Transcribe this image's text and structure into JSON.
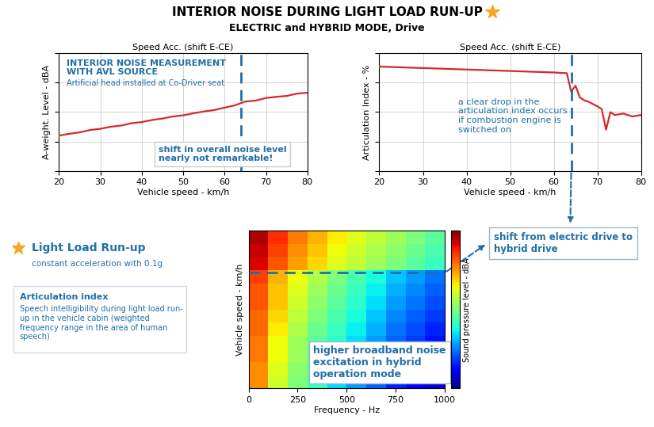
{
  "title": "INTERIOR NOISE DURING LIGHT LOAD RUN-UP",
  "subtitle": "ELECTRIC and HYBRID MODE, Drive",
  "run_up_note": {
    "title": "Light Load Run-up",
    "text": "constant acceleration with 0.1g"
  },
  "definition": {
    "title": "Articulation index",
    "lines": [
      "Speech intelligibility during light load run-",
      "up in the vehicle cabin (weighted",
      "frequency range in the area of human",
      "speech)"
    ]
  },
  "shift_note": {
    "lines": [
      "shift from electric drive to",
      "hybrid drive"
    ]
  },
  "shift_speed": 64,
  "chart_data": [
    {
      "type": "line",
      "title": "Speed Acc. (shift E-CE)",
      "x_label": "Vehicle speed - km/h",
      "y_label": "A-weight. Level - dBA",
      "x": [
        20,
        22.5,
        25,
        27.5,
        30,
        32.5,
        35,
        37.5,
        40,
        42.5,
        45,
        47.5,
        50,
        52.5,
        55,
        57.5,
        60,
        62.5,
        65,
        67.5,
        70,
        72.5,
        75,
        77.5,
        80
      ],
      "values": [
        52.0,
        52.6,
        53.1,
        53.9,
        54.3,
        55.0,
        55.4,
        56.2,
        56.6,
        57.3,
        57.8,
        58.5,
        58.9,
        59.6,
        60.2,
        60.7,
        61.5,
        62.3,
        63.6,
        63.9,
        64.8,
        65.2,
        65.5,
        66.3,
        66.6
      ],
      "color": "#d42a2a",
      "xlim": [
        20,
        80
      ],
      "xticks": [
        20,
        30,
        40,
        50,
        60,
        70,
        80
      ],
      "ylim": [
        40,
        80
      ],
      "yticks": [
        40,
        50,
        60,
        70,
        80
      ],
      "grid": true,
      "tick_labels": "x",
      "heading_lines": [
        "INTERIOR NOISE MEASUREMENT",
        "WITH AVL SOURCE"
      ],
      "heading_text": "Artificial head installed at Co-Driver seat",
      "note_lines": [
        "shift in overall noise level",
        "nearly not remarkable!"
      ]
    },
    {
      "type": "line",
      "title": "Speed Acc. (shift E-CE)",
      "x_label": "Vehicle speed - km/h",
      "y_label": "Articulation Index - %",
      "x": [
        20,
        25,
        30,
        35,
        40,
        45,
        50,
        55,
        60,
        63,
        64,
        65,
        66,
        67,
        68,
        70,
        71,
        72,
        73,
        74,
        76,
        78,
        80
      ],
      "values": [
        91,
        90.5,
        90,
        89.5,
        89,
        88.5,
        88,
        87.5,
        87,
        86.5,
        74,
        78,
        70,
        68,
        67,
        64,
        62,
        48,
        60,
        58,
        59,
        57,
        58
      ],
      "color": "#d42a2a",
      "xlim": [
        20,
        80
      ],
      "xticks": [
        20,
        30,
        40,
        50,
        60,
        70,
        80
      ],
      "ylim": [
        20,
        100
      ],
      "yticks": [
        20,
        40,
        60,
        80,
        100
      ],
      "grid": true,
      "tick_labels": "x",
      "note_lines": [
        "a clear drop in the",
        "articulation index occurs",
        "if combustion engine is",
        "switched on"
      ]
    },
    {
      "type": "heatmap",
      "x_label": "Frequency - Hz",
      "y_label": "Vehicle speed - km/h",
      "colorbar_label": "Sound pressure level - dBA",
      "x_edges": [
        0,
        100,
        200,
        300,
        400,
        500,
        600,
        700,
        800,
        900,
        1000
      ],
      "y_edges": [
        20,
        25,
        30,
        35,
        40,
        45,
        50,
        55,
        60,
        65,
        70,
        75,
        80
      ],
      "cells": [
        [
          58,
          50,
          45,
          41,
          37,
          34,
          31,
          28,
          26,
          24
        ],
        [
          58,
          51,
          46,
          42,
          38,
          35,
          32,
          29,
          27,
          25
        ],
        [
          59,
          52,
          47,
          43,
          39,
          36,
          33,
          30,
          28,
          26
        ],
        [
          59,
          52,
          47,
          43,
          40,
          37,
          34,
          31,
          29,
          27
        ],
        [
          60,
          53,
          48,
          44,
          41,
          38,
          35,
          32,
          30,
          28
        ],
        [
          60,
          54,
          49,
          45,
          42,
          39,
          36,
          33,
          31,
          29
        ],
        [
          61,
          55,
          50,
          46,
          43,
          40,
          37,
          34,
          32,
          30
        ],
        [
          61,
          55,
          51,
          47,
          44,
          41,
          38,
          35,
          33,
          31
        ],
        [
          62,
          56,
          52,
          48,
          45,
          42,
          39,
          36,
          34,
          32
        ],
        [
          66,
          61,
          57,
          54,
          51,
          49,
          47,
          45,
          43,
          41
        ],
        [
          67,
          62,
          58,
          55,
          52,
          50,
          48,
          46,
          44,
          42
        ],
        [
          68,
          63,
          59,
          56,
          53,
          51,
          49,
          47,
          45,
          43
        ]
      ],
      "clim": [
        20,
        70
      ],
      "xlim": [
        0,
        1000
      ],
      "xticks": [
        0,
        250,
        500,
        750,
        1000
      ],
      "ylim": [
        20,
        80
      ],
      "tick_labels": "x",
      "note_lines": [
        "higher broadband noise",
        "excitation in hybrid",
        "operation mode"
      ]
    }
  ]
}
